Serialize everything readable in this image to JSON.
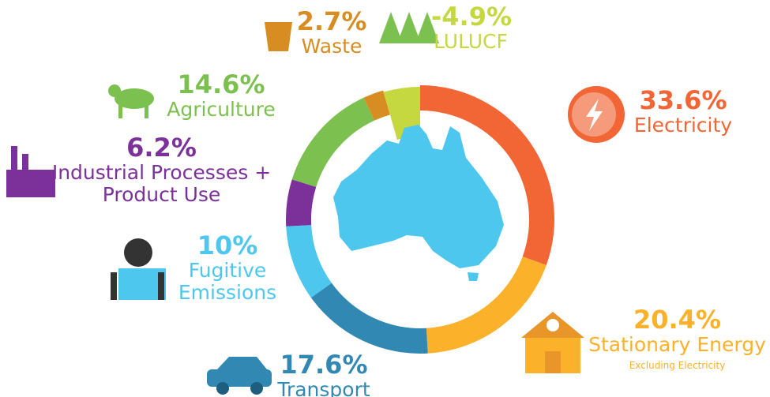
{
  "chart_data": {
    "type": "donut",
    "categories": [
      "Electricity",
      "Stationary Energy",
      "Transport",
      "Fugitive Emissions",
      "Industrial Processes + Product Use",
      "Agriculture",
      "Waste",
      "LULUCF"
    ],
    "values": [
      33.6,
      20.4,
      17.6,
      10,
      6.2,
      14.6,
      2.7,
      -4.9
    ],
    "value_labels": [
      "33.6%",
      "20.4%",
      "17.6%",
      "10%",
      "6.2%",
      "14.6%",
      "2.7%",
      "-4.9%"
    ],
    "colors": [
      "#f26535",
      "#fbb12a",
      "#3189b3",
      "#4ec7ef",
      "#7b3199",
      "#7cc04f",
      "#d88d22",
      "#c5d83f"
    ],
    "subtitles": {
      "1": "Excluding Electricity"
    }
  }
}
